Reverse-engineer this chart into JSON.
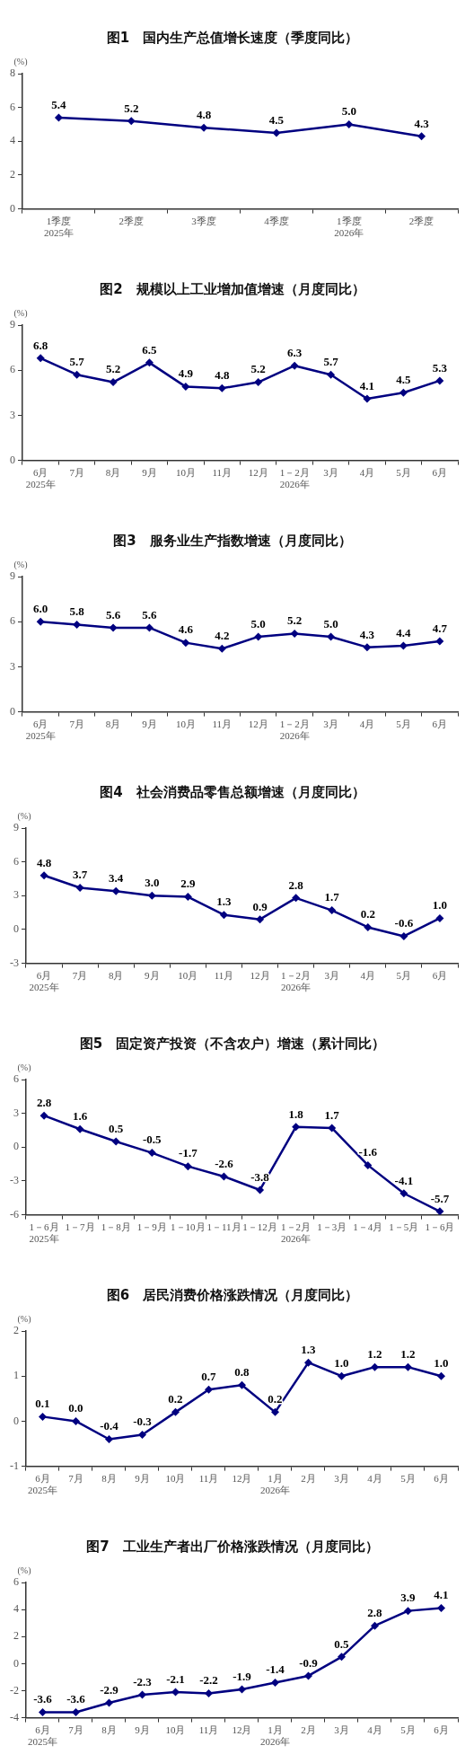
{
  "chart_data": [
    {
      "type": "line",
      "title": "图1　国内生产总值增长速度（季度同比）",
      "ylabel": "(%)",
      "categories": [
        "1季度\n2025年",
        "2季度",
        "3季度",
        "4季度",
        "1季度\n2026年",
        "2季度"
      ],
      "series": [
        {
          "color": "#000080",
          "values": [
            5.4,
            5.2,
            4.8,
            4.5,
            5.0,
            4.3
          ],
          "value_labels": [
            "5.4",
            "5.2",
            "4.8",
            "4.5",
            "5.0",
            "4.3"
          ]
        }
      ],
      "ylim": [
        0,
        8
      ],
      "yticks": [
        0,
        2,
        4,
        6,
        8
      ],
      "grid": false,
      "legend": false,
      "marker": "diamond",
      "line_style": "solid"
    },
    {
      "type": "line",
      "title": "图2　规模以上工业增加值增速（月度同比）",
      "ylabel": "(%)",
      "categories": [
        "6月\n2025年",
        "7月",
        "8月",
        "9月",
        "10月",
        "11月",
        "12月",
        "1－2月\n2026年",
        "3月",
        "4月",
        "5月",
        "6月"
      ],
      "series": [
        {
          "color": "#000080",
          "values": [
            6.8,
            5.7,
            5.2,
            6.5,
            4.9,
            4.8,
            5.2,
            6.3,
            5.7,
            4.1,
            4.5,
            5.3
          ],
          "value_labels": [
            "6.8",
            "5.7",
            "5.2",
            "6.5",
            "4.9",
            "4.8",
            "5.2",
            "6.3",
            "5.7",
            "4.1",
            "4.5",
            "5.3"
          ]
        }
      ],
      "ylim": [
        0,
        9
      ],
      "yticks": [
        0,
        3,
        6,
        9
      ],
      "grid": false,
      "legend": false,
      "marker": "diamond",
      "line_style": "solid"
    },
    {
      "type": "line",
      "title": "图3　服务业生产指数增速（月度同比）",
      "ylabel": "(%)",
      "categories": [
        "6月\n2025年",
        "7月",
        "8月",
        "9月",
        "10月",
        "11月",
        "12月",
        "1－2月\n2026年",
        "3月",
        "4月",
        "5月",
        "6月"
      ],
      "series": [
        {
          "color": "#000080",
          "values": [
            6.0,
            5.8,
            5.6,
            5.6,
            4.6,
            4.2,
            5.0,
            5.2,
            5.0,
            4.3,
            4.4,
            4.7
          ],
          "value_labels": [
            "6.0",
            "5.8",
            "5.6",
            "5.6",
            "4.6",
            "4.2",
            "5.0",
            "5.2",
            "5.0",
            "4.3",
            "4.4",
            "4.7"
          ]
        }
      ],
      "ylim": [
        0,
        9
      ],
      "yticks": [
        0,
        3,
        6,
        9
      ],
      "grid": false,
      "legend": false,
      "marker": "diamond",
      "line_style": "solid"
    },
    {
      "type": "line",
      "title": "图4　社会消费品零售总额增速（月度同比）",
      "ylabel": "(%)",
      "categories": [
        "6月\n2025年",
        "7月",
        "8月",
        "9月",
        "10月",
        "11月",
        "12月",
        "1－2月\n2026年",
        "3月",
        "4月",
        "5月",
        "6月"
      ],
      "series": [
        {
          "color": "#000080",
          "values": [
            4.8,
            3.7,
            3.4,
            3.0,
            2.9,
            1.3,
            0.9,
            2.8,
            1.7,
            0.2,
            -0.6,
            1.0
          ],
          "value_labels": [
            "4.8",
            "3.7",
            "3.4",
            "3.0",
            "2.9",
            "1.3",
            "0.9",
            "2.8",
            "1.7",
            "0.2",
            "-0.6",
            "1.0"
          ]
        }
      ],
      "ylim": [
        -3,
        9
      ],
      "yticks": [
        -3,
        0,
        3,
        6,
        9
      ],
      "grid": false,
      "legend": false,
      "marker": "diamond",
      "line_style": "solid"
    },
    {
      "type": "line",
      "title": "图5　固定资产投资（不含农户）增速（累计同比）",
      "ylabel": "(%)",
      "categories": [
        "1－6月\n2025年",
        "1－7月",
        "1－8月",
        "1－9月",
        "1－10月",
        "1－11月",
        "1－12月",
        "1－2月\n2026年",
        "1－3月",
        "1－4月",
        "1－5月",
        "1－6月"
      ],
      "series": [
        {
          "color": "#000080",
          "values": [
            2.8,
            1.6,
            0.5,
            -0.5,
            -1.7,
            -2.6,
            -3.8,
            1.8,
            1.7,
            -1.6,
            -4.1,
            -5.7
          ],
          "value_labels": [
            "2.8",
            "1.6",
            "0.5",
            "-0.5",
            "-1.7",
            "-2.6",
            "-3.8",
            "1.8",
            "1.7",
            "-1.6",
            "-4.1",
            "-5.7"
          ]
        }
      ],
      "ylim": [
        -6,
        6
      ],
      "yticks": [
        -6,
        -3,
        0,
        3,
        6
      ],
      "grid": false,
      "legend": false,
      "marker": "diamond",
      "line_style": "solid"
    },
    {
      "type": "line",
      "title": "图6　居民消费价格涨跌情况（月度同比）",
      "ylabel": "(%)",
      "categories": [
        "6月\n2025年",
        "7月",
        "8月",
        "9月",
        "10月",
        "11月",
        "12月",
        "1月\n2026年",
        "2月",
        "3月",
        "4月",
        "5月",
        "6月"
      ],
      "series": [
        {
          "color": "#000080",
          "values": [
            0.1,
            0.0,
            -0.4,
            -0.3,
            0.2,
            0.7,
            0.8,
            0.2,
            1.3,
            1.0,
            1.2,
            1.2,
            1.0
          ],
          "value_labels": [
            "0.1",
            "0.0",
            "-0.4",
            "-0.3",
            "0.2",
            "0.7",
            "0.8",
            "0.2",
            "1.3",
            "1.0",
            "1.2",
            "1.2",
            "1.0"
          ]
        }
      ],
      "ylim": [
        -1,
        2
      ],
      "yticks": [
        -1,
        0,
        1,
        2
      ],
      "grid": false,
      "legend": false,
      "marker": "diamond",
      "line_style": "solid"
    },
    {
      "type": "line",
      "title": "图7　工业生产者出厂价格涨跌情况（月度同比）",
      "ylabel": "(%)",
      "categories": [
        "6月\n2025年",
        "7月",
        "8月",
        "9月",
        "10月",
        "11月",
        "12月",
        "1月\n2026年",
        "2月",
        "3月",
        "4月",
        "5月",
        "6月"
      ],
      "series": [
        {
          "color": "#000080",
          "values": [
            -3.6,
            -3.6,
            -2.9,
            -2.3,
            -2.1,
            -2.2,
            -1.9,
            -1.4,
            -0.9,
            0.5,
            2.8,
            3.9,
            4.1
          ],
          "value_labels": [
            "-3.6",
            "-3.6",
            "-2.9",
            "-2.3",
            "-2.1",
            "-2.2",
            "-1.9",
            "-1.4",
            "-0.9",
            "0.5",
            "2.8",
            "3.9",
            "4.1"
          ]
        }
      ],
      "ylim": [
        -4,
        6
      ],
      "yticks": [
        -4,
        -2,
        0,
        2,
        4,
        6
      ],
      "grid": false,
      "legend": false,
      "marker": "diamond",
      "line_style": "solid"
    }
  ]
}
